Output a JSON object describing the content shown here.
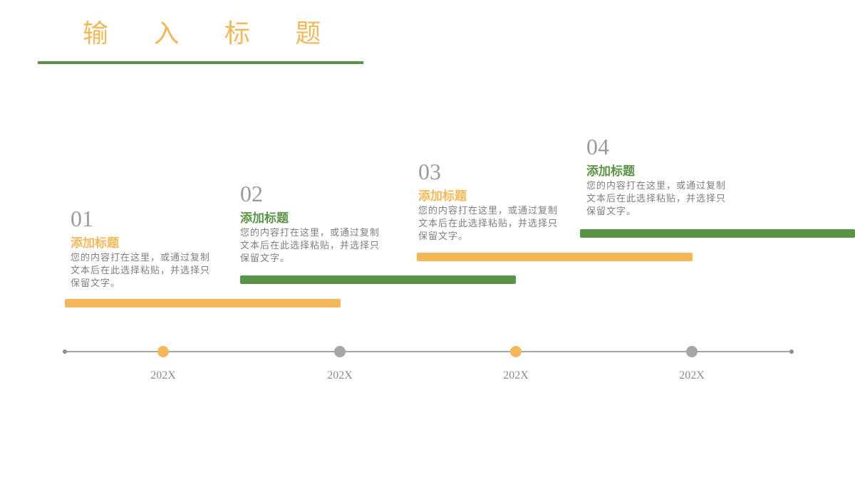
{
  "page": {
    "title": "输 入 标 题"
  },
  "colors": {
    "orange": "#f4b859",
    "green": "#5a9447",
    "gray": "#a6a6a6"
  },
  "steps": [
    {
      "number": "01",
      "title": "添加标题",
      "body": "您的内容打在这里，或通过复制文本后在此选择粘贴，并选择只保留文字。",
      "color": "orange"
    },
    {
      "number": "02",
      "title": "添加标题",
      "body": "您的内容打在这里，或通过复制文本后在此选择粘贴，并选择只保留文字。",
      "color": "green"
    },
    {
      "number": "03",
      "title": "添加标题",
      "body": "您的内容打在这里，或通过复制文本后在此选择粘贴，并选择只保留文字。",
      "color": "orange"
    },
    {
      "number": "04",
      "title": "添加标题",
      "body": "您的内容打在这里，或通过复制文本后在此选择粘贴，并选择只保留文字。",
      "color": "green"
    }
  ],
  "timeline": {
    "markers": [
      {
        "year": "202X",
        "color": "orange"
      },
      {
        "year": "202X",
        "color": "gray"
      },
      {
        "year": "202X",
        "color": "orange"
      },
      {
        "year": "202X",
        "color": "gray"
      }
    ]
  }
}
